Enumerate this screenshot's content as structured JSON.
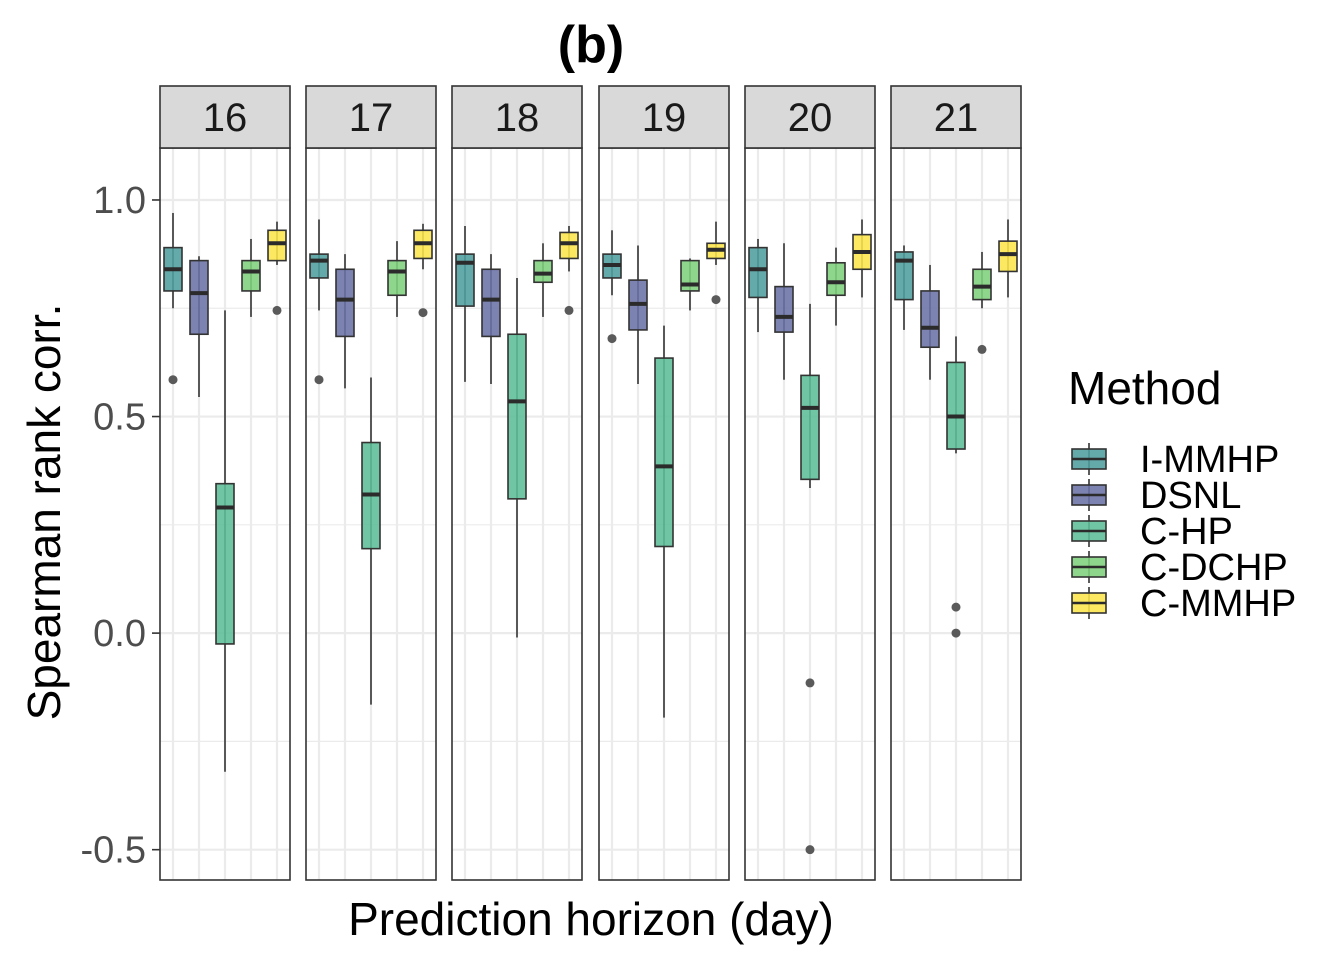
{
  "chart_data": {
    "type": "boxplot",
    "title": "(b)",
    "xlabel": "Prediction horizon (day)",
    "ylabel": "Spearman rank corr.",
    "ylim": [
      -0.57,
      1.12
    ],
    "yticks": [
      1.0,
      0.5,
      0.0,
      -0.5
    ],
    "ytick_labels": [
      "1.0",
      "0.5",
      "0.0",
      "-0.5"
    ],
    "grid": true,
    "legend": {
      "title": "Method",
      "position": "right",
      "entries": [
        "I-MMHP",
        "DSNL",
        "C-HP",
        "C-DCHP",
        "C-MMHP"
      ]
    },
    "colors": {
      "I-MMHP": "#4F9E9F",
      "DSNL": "#6A72A6",
      "C-HP": "#5CBE97",
      "C-DCHP": "#7FD07D",
      "C-MMHP": "#FCE64B",
      "strip": "#D9D9D9",
      "grid": "#EBEBEB",
      "outlier": "#5A5A5A"
    },
    "panels": [
      {
        "label": "16",
        "boxes": [
          {
            "method": "I-MMHP",
            "min": 0.75,
            "q1": 0.79,
            "median": 0.84,
            "q3": 0.89,
            "max": 0.97,
            "outliers": [
              0.585
            ]
          },
          {
            "method": "DSNL",
            "min": 0.545,
            "q1": 0.69,
            "median": 0.785,
            "q3": 0.86,
            "max": 0.87,
            "outliers": []
          },
          {
            "method": "C-HP",
            "min": -0.32,
            "q1": -0.025,
            "median": 0.29,
            "q3": 0.345,
            "max": 0.745,
            "outliers": []
          },
          {
            "method": "C-DCHP",
            "min": 0.73,
            "q1": 0.79,
            "median": 0.835,
            "q3": 0.86,
            "max": 0.91,
            "outliers": []
          },
          {
            "method": "C-MMHP",
            "min": 0.85,
            "q1": 0.86,
            "median": 0.9,
            "q3": 0.93,
            "max": 0.95,
            "outliers": [
              0.745
            ]
          }
        ]
      },
      {
        "label": "17",
        "boxes": [
          {
            "method": "I-MMHP",
            "min": 0.745,
            "q1": 0.82,
            "median": 0.86,
            "q3": 0.875,
            "max": 0.955,
            "outliers": [
              0.585
            ]
          },
          {
            "method": "DSNL",
            "min": 0.565,
            "q1": 0.685,
            "median": 0.77,
            "q3": 0.84,
            "max": 0.875,
            "outliers": []
          },
          {
            "method": "C-HP",
            "min": -0.165,
            "q1": 0.195,
            "median": 0.32,
            "q3": 0.44,
            "max": 0.59,
            "outliers": []
          },
          {
            "method": "C-DCHP",
            "min": 0.73,
            "q1": 0.78,
            "median": 0.835,
            "q3": 0.86,
            "max": 0.905,
            "outliers": []
          },
          {
            "method": "C-MMHP",
            "min": 0.84,
            "q1": 0.865,
            "median": 0.9,
            "q3": 0.93,
            "max": 0.945,
            "outliers": [
              0.74
            ]
          }
        ]
      },
      {
        "label": "18",
        "boxes": [
          {
            "method": "I-MMHP",
            "min": 0.58,
            "q1": 0.755,
            "median": 0.855,
            "q3": 0.875,
            "max": 0.94,
            "outliers": []
          },
          {
            "method": "DSNL",
            "min": 0.575,
            "q1": 0.685,
            "median": 0.77,
            "q3": 0.84,
            "max": 0.875,
            "outliers": []
          },
          {
            "method": "C-HP",
            "min": -0.01,
            "q1": 0.31,
            "median": 0.535,
            "q3": 0.69,
            "max": 0.82,
            "outliers": []
          },
          {
            "method": "C-DCHP",
            "min": 0.73,
            "q1": 0.81,
            "median": 0.83,
            "q3": 0.86,
            "max": 0.9,
            "outliers": []
          },
          {
            "method": "C-MMHP",
            "min": 0.835,
            "q1": 0.865,
            "median": 0.9,
            "q3": 0.925,
            "max": 0.94,
            "outliers": [
              0.745
            ]
          }
        ]
      },
      {
        "label": "19",
        "boxes": [
          {
            "method": "I-MMHP",
            "min": 0.78,
            "q1": 0.82,
            "median": 0.85,
            "q3": 0.875,
            "max": 0.93,
            "outliers": [
              0.68
            ]
          },
          {
            "method": "DSNL",
            "min": 0.575,
            "q1": 0.7,
            "median": 0.76,
            "q3": 0.815,
            "max": 0.895,
            "outliers": []
          },
          {
            "method": "C-HP",
            "min": -0.195,
            "q1": 0.2,
            "median": 0.385,
            "q3": 0.635,
            "max": 0.71,
            "outliers": []
          },
          {
            "method": "C-DCHP",
            "min": 0.745,
            "q1": 0.79,
            "median": 0.805,
            "q3": 0.86,
            "max": 0.865,
            "outliers": []
          },
          {
            "method": "C-MMHP",
            "min": 0.85,
            "q1": 0.865,
            "median": 0.885,
            "q3": 0.9,
            "max": 0.95,
            "outliers": [
              0.77
            ]
          }
        ]
      },
      {
        "label": "20",
        "boxes": [
          {
            "method": "I-MMHP",
            "min": 0.695,
            "q1": 0.775,
            "median": 0.84,
            "q3": 0.89,
            "max": 0.91,
            "outliers": []
          },
          {
            "method": "DSNL",
            "min": 0.585,
            "q1": 0.695,
            "median": 0.73,
            "q3": 0.8,
            "max": 0.9,
            "outliers": []
          },
          {
            "method": "C-HP",
            "min": 0.335,
            "q1": 0.355,
            "median": 0.52,
            "q3": 0.595,
            "max": 0.76,
            "outliers": [
              -0.115,
              -0.5
            ]
          },
          {
            "method": "C-DCHP",
            "min": 0.71,
            "q1": 0.78,
            "median": 0.81,
            "q3": 0.855,
            "max": 0.89,
            "outliers": []
          },
          {
            "method": "C-MMHP",
            "min": 0.775,
            "q1": 0.84,
            "median": 0.88,
            "q3": 0.92,
            "max": 0.955,
            "outliers": []
          }
        ]
      },
      {
        "label": "21",
        "boxes": [
          {
            "method": "I-MMHP",
            "min": 0.7,
            "q1": 0.77,
            "median": 0.86,
            "q3": 0.88,
            "max": 0.895,
            "outliers": []
          },
          {
            "method": "DSNL",
            "min": 0.585,
            "q1": 0.66,
            "median": 0.705,
            "q3": 0.79,
            "max": 0.85,
            "outliers": []
          },
          {
            "method": "C-HP",
            "min": 0.415,
            "q1": 0.425,
            "median": 0.5,
            "q3": 0.625,
            "max": 0.685,
            "outliers": [
              0.06,
              0.0
            ]
          },
          {
            "method": "C-DCHP",
            "min": 0.75,
            "q1": 0.77,
            "median": 0.8,
            "q3": 0.84,
            "max": 0.88,
            "outliers": [
              0.655
            ]
          },
          {
            "method": "C-MMHP",
            "min": 0.775,
            "q1": 0.835,
            "median": 0.875,
            "q3": 0.905,
            "max": 0.955,
            "outliers": []
          }
        ]
      }
    ]
  }
}
